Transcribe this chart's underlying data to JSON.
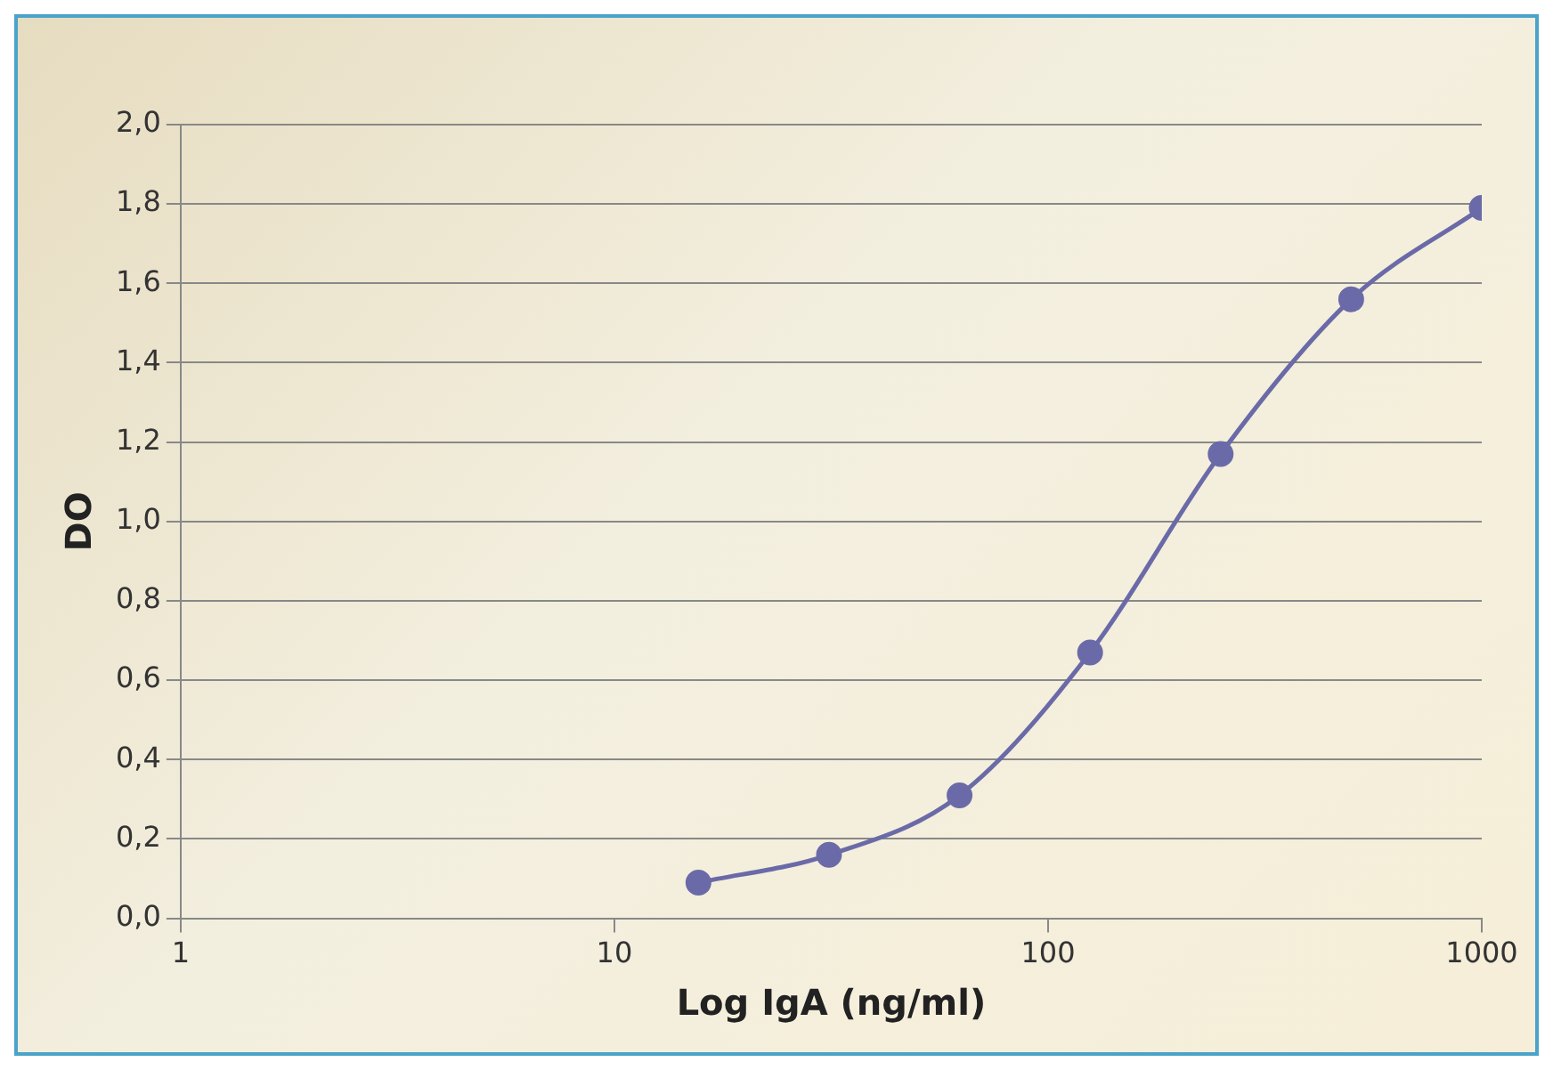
{
  "chart_data": {
    "type": "line",
    "xlabel": "Log IgA (ng/ml)",
    "ylabel": "DO",
    "x": [
      15.625,
      31.25,
      62.5,
      125,
      250,
      500,
      1000
    ],
    "series": [
      {
        "color": "#6b6aa8",
        "values": [
          0.09,
          0.16,
          0.31,
          0.67,
          1.17,
          1.56,
          1.79
        ]
      }
    ],
    "log": "x",
    "xlim": [
      1,
      1000
    ],
    "xticks": [
      1,
      10,
      100,
      1000
    ],
    "ylim": [
      0,
      2
    ],
    "yticks": [
      {
        "value": 0,
        "label": "0,0"
      },
      {
        "value": 0.2,
        "label": "0,2"
      },
      {
        "value": 0.4,
        "label": "0,4"
      },
      {
        "value": 0.6,
        "label": "0,6"
      },
      {
        "value": 0.8,
        "label": "0,8"
      },
      {
        "value": 1,
        "label": "1,0"
      },
      {
        "value": 1.2,
        "label": "1,2"
      },
      {
        "value": 1.4,
        "label": "1,4"
      },
      {
        "value": 1.6,
        "label": "1,6"
      },
      {
        "value": 1.8,
        "label": "1,8"
      },
      {
        "value": 2,
        "label": "2,0"
      }
    ],
    "grid": "y",
    "legend": false,
    "marker": "circle",
    "line_style": "solid"
  }
}
